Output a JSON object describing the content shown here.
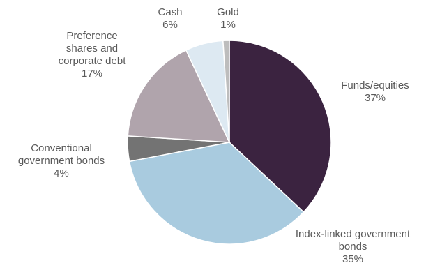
{
  "chart_data": {
    "type": "pie",
    "start_angle_deg": 0,
    "direction": "clockwise",
    "slices": [
      {
        "name": "Funds/equities",
        "label_lines": [
          "Funds/equities"
        ],
        "value": 37,
        "value_label": "37%",
        "color": "#3b2340"
      },
      {
        "name": "Index-linked government bonds",
        "label_lines": [
          "Index-linked government",
          "bonds"
        ],
        "value": 35,
        "value_label": "35%",
        "color": "#a9cbdf"
      },
      {
        "name": "Conventional government bonds",
        "label_lines": [
          "Conventional",
          "government bonds"
        ],
        "value": 4,
        "value_label": "4%",
        "color": "#737373"
      },
      {
        "name": "Preference shares and corporate debt",
        "label_lines": [
          "Preference",
          "shares and",
          "corporate debt"
        ],
        "value": 17,
        "value_label": "17%",
        "color": "#b0a4ac"
      },
      {
        "name": "Cash",
        "label_lines": [
          "Cash"
        ],
        "value": 6,
        "value_label": "6%",
        "color": "#dde9f2"
      },
      {
        "name": "Gold",
        "label_lines": [
          "Gold"
        ],
        "value": 1,
        "value_label": "1%",
        "color": "#bdbdbd"
      }
    ]
  }
}
